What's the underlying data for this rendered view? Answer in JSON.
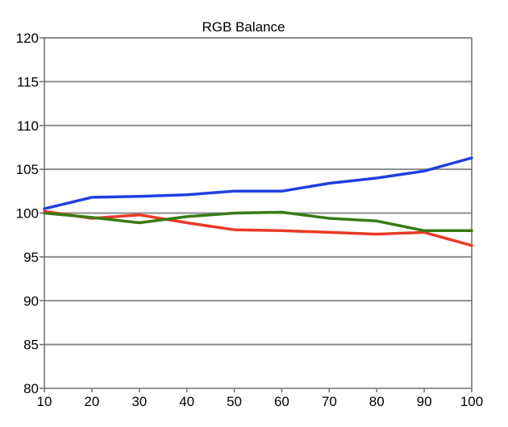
{
  "chart_data": {
    "type": "line",
    "title": "RGB Balance",
    "xlabel": "",
    "ylabel": "",
    "x": [
      10,
      20,
      30,
      40,
      50,
      60,
      70,
      80,
      90,
      100
    ],
    "xlim": [
      10,
      100
    ],
    "ylim": [
      80,
      120
    ],
    "yticks": [
      80,
      85,
      90,
      95,
      100,
      105,
      110,
      115,
      120
    ],
    "grid": true,
    "legend": "none",
    "series": [
      {
        "color": "#1f3fe0",
        "values": [
          100.5,
          101.8,
          101.9,
          102.1,
          102.5,
          102.5,
          103.4,
          104.0,
          104.8,
          106.3
        ]
      },
      {
        "color": "#e83a26",
        "values": [
          100.2,
          99.4,
          99.8,
          98.9,
          98.1,
          98.0,
          97.8,
          97.6,
          97.8,
          96.3
        ]
      },
      {
        "color": "#3a7a14",
        "values": [
          100.0,
          99.5,
          98.9,
          99.6,
          100.0,
          100.1,
          99.4,
          99.1,
          98.0,
          98.0
        ]
      }
    ]
  }
}
